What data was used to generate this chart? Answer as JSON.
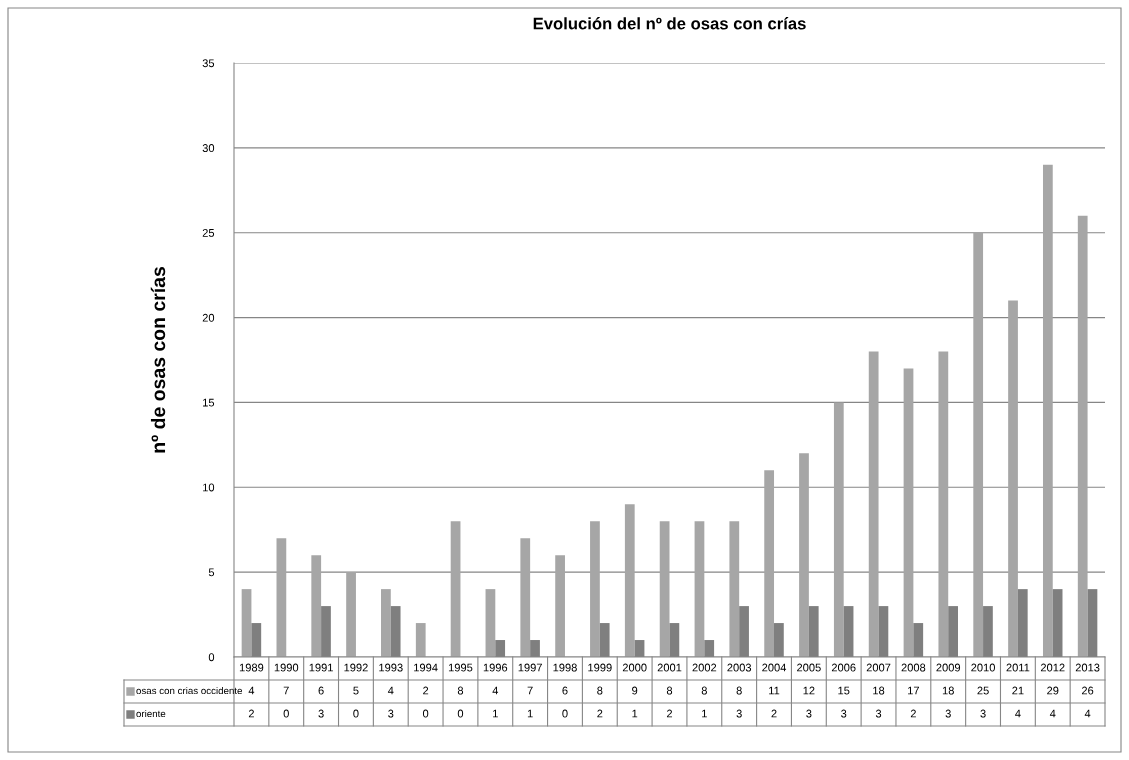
{
  "chart_data": {
    "type": "bar",
    "title": "Evolución del nº de osas con crías",
    "ylabel": "nº de osas con crías",
    "categories": [
      "1989",
      "1990",
      "1991",
      "1992",
      "1993",
      "1994",
      "1995",
      "1996",
      "1997",
      "1998",
      "1999",
      "2000",
      "2001",
      "2002",
      "2003",
      "2004",
      "2005",
      "2006",
      "2007",
      "2008",
      "2009",
      "2010",
      "2011",
      "2012",
      "2013"
    ],
    "series": [
      {
        "name": "osas con crias occidente",
        "color": "#a6a6a6",
        "values": [
          4,
          7,
          6,
          5,
          4,
          2,
          8,
          4,
          7,
          6,
          8,
          9,
          8,
          8,
          8,
          11,
          12,
          15,
          18,
          17,
          18,
          25,
          21,
          29,
          26
        ]
      },
      {
        "name": "oriente",
        "color": "#7f7f7f",
        "values": [
          2,
          0,
          3,
          0,
          3,
          0,
          0,
          1,
          1,
          0,
          2,
          1,
          2,
          1,
          3,
          2,
          3,
          3,
          3,
          2,
          3,
          3,
          4,
          4,
          4
        ]
      }
    ],
    "ylim": [
      0,
      35
    ],
    "yticks": [
      0,
      5,
      10,
      15,
      20,
      25,
      30,
      35
    ],
    "grid": "y",
    "legend": "bottom",
    "data_labels": true
  }
}
